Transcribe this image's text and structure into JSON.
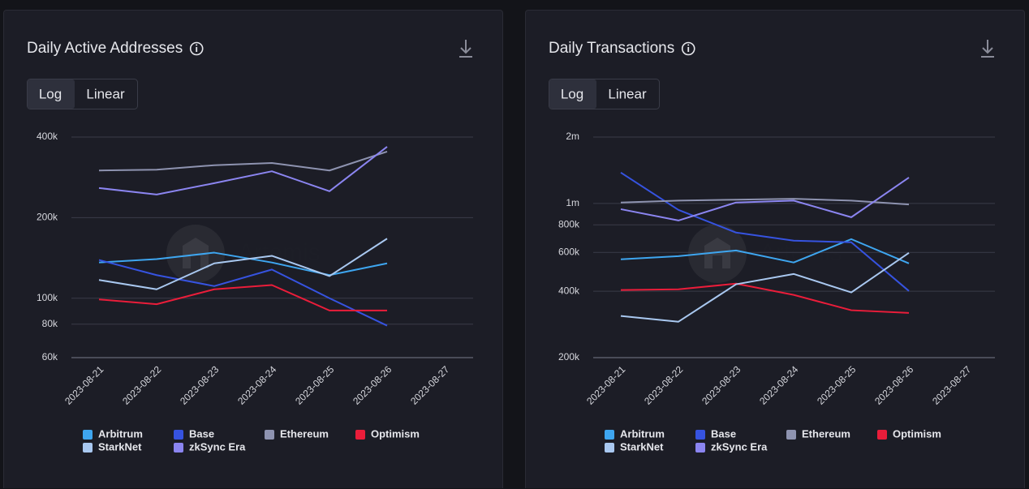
{
  "chart_data": [
    {
      "type": "line",
      "title": "Daily Active Addresses",
      "buttons": [
        "Log",
        "Linear"
      ],
      "watermark": "Artemis",
      "log_scale": true,
      "grid": true,
      "x": [
        "2023-08-21",
        "2023-08-22",
        "2023-08-23",
        "2023-08-24",
        "2023-08-25",
        "2023-08-26",
        "2023-08-27"
      ],
      "ylim": [
        60000,
        400000
      ],
      "yticks": [
        {
          "value": 60000,
          "label": "60k"
        },
        {
          "value": 80000,
          "label": "80k"
        },
        {
          "value": 100000,
          "label": "100k"
        },
        {
          "value": 200000,
          "label": "200k"
        },
        {
          "value": 400000,
          "label": "400k"
        }
      ],
      "series": [
        {
          "name": "Arbitrum",
          "color": "#3ea6f0",
          "values": [
            136000,
            140000,
            148000,
            136000,
            122000,
            135000,
            null
          ]
        },
        {
          "name": "Base",
          "color": "#3653e0",
          "values": [
            139000,
            122000,
            111000,
            128000,
            100000,
            79000,
            null
          ]
        },
        {
          "name": "Ethereum",
          "color": "#8e93b0",
          "values": [
            300000,
            302000,
            314000,
            320000,
            300000,
            353000,
            null
          ]
        },
        {
          "name": "Optimism",
          "color": "#ea1d3a",
          "values": [
            99000,
            95000,
            108000,
            112000,
            90000,
            90000,
            null
          ]
        },
        {
          "name": "StarkNet",
          "color": "#a9c8f0",
          "values": [
            117000,
            108000,
            135000,
            144000,
            121000,
            167000,
            null
          ]
        },
        {
          "name": "zkSync Era",
          "color": "#8b85f0",
          "values": [
            258000,
            244000,
            269000,
            298000,
            251000,
            368000,
            null
          ]
        }
      ]
    },
    {
      "type": "line",
      "title": "Daily Transactions",
      "buttons": [
        "Log",
        "Linear"
      ],
      "watermark": "Artemis",
      "log_scale": true,
      "grid": true,
      "x": [
        "2023-08-21",
        "2023-08-22",
        "2023-08-23",
        "2023-08-24",
        "2023-08-25",
        "2023-08-26",
        "2023-08-27"
      ],
      "ylim": [
        200000,
        2000000
      ],
      "yticks": [
        {
          "value": 200000,
          "label": "200k"
        },
        {
          "value": 400000,
          "label": "400k"
        },
        {
          "value": 600000,
          "label": "600k"
        },
        {
          "value": 800000,
          "label": "800k"
        },
        {
          "value": 1000000,
          "label": "1m"
        },
        {
          "value": 2000000,
          "label": "2m"
        }
      ],
      "series": [
        {
          "name": "Arbitrum",
          "color": "#3ea6f0",
          "values": [
            558000,
            577000,
            612000,
            540000,
            689000,
            535000,
            null
          ]
        },
        {
          "name": "Base",
          "color": "#3653e0",
          "values": [
            1380000,
            935000,
            738000,
            678000,
            667000,
            401000,
            null
          ]
        },
        {
          "name": "Ethereum",
          "color": "#8e93b0",
          "values": [
            1010000,
            1030000,
            1040000,
            1050000,
            1030000,
            990000,
            null
          ]
        },
        {
          "name": "Optimism",
          "color": "#ea1d3a",
          "values": [
            405000,
            408000,
            433000,
            385000,
            328000,
            319000,
            null
          ]
        },
        {
          "name": "StarkNet",
          "color": "#a9c8f0",
          "values": [
            309000,
            291000,
            430000,
            479000,
            395000,
            597000,
            null
          ]
        },
        {
          "name": "zkSync Era",
          "color": "#8b85f0",
          "values": [
            942000,
            837000,
            1010000,
            1030000,
            866000,
            1310000,
            null
          ]
        }
      ]
    }
  ]
}
